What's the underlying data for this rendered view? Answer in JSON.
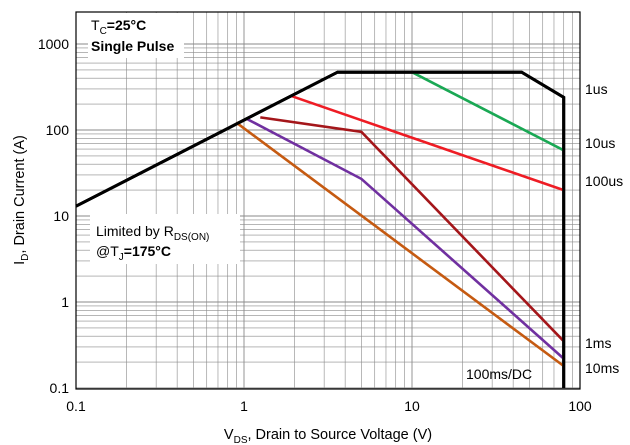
{
  "chart_data": {
    "type": "line",
    "title": "",
    "xlabel": {
      "main": "V",
      "sub": "DS",
      "rest": ", Drain to Source Voltage (V)"
    },
    "ylabel": {
      "main": "I",
      "sub": "D",
      "rest": ", Drain Current (A)"
    },
    "x_scale": "log",
    "y_scale": "log",
    "xlim": [
      0.1,
      100
    ],
    "ylim": [
      0.1,
      1500
    ],
    "x_ticks": [
      {
        "value": 0.1,
        "label": "0.1"
      },
      {
        "value": 1,
        "label": "1"
      },
      {
        "value": 10,
        "label": "10"
      },
      {
        "value": 100,
        "label": "100"
      }
    ],
    "y_ticks": [
      {
        "value": 0.1,
        "label": "0.1"
      },
      {
        "value": 1,
        "label": "1"
      },
      {
        "value": 10,
        "label": "10"
      },
      {
        "value": 100,
        "label": "100"
      },
      {
        "value": 1000,
        "label": "1000"
      }
    ],
    "grid": true,
    "conditions": {
      "tc_prefix": "T",
      "tc_sub": "C",
      "tc_value": "=25°C",
      "pulse": "Single Pulse",
      "rds_prefix": "Limited by R",
      "rds_sub": "DS(ON)",
      "tj_prefix": "@T",
      "tj_sub": "J",
      "tj_value": "=175°C"
    },
    "series": [
      {
        "name": "1us",
        "color": "#000000",
        "points": [
          [
            0.1,
            13
          ],
          [
            3.6,
            470
          ],
          [
            45,
            470
          ],
          [
            80,
            240
          ],
          [
            80,
            0.1
          ]
        ]
      },
      {
        "name": "10us",
        "color": "#1aa854",
        "points": [
          [
            10,
            470
          ],
          [
            80,
            58
          ]
        ]
      },
      {
        "name": "100us",
        "color": "#ee1c24",
        "points": [
          [
            1.9,
            250
          ],
          [
            80,
            20
          ]
        ]
      },
      {
        "name": "1ms",
        "color": "#a4161a",
        "points": [
          [
            1.25,
            140
          ],
          [
            5,
            95
          ],
          [
            80,
            0.35
          ]
        ]
      },
      {
        "name": "10ms",
        "color": "#7030a0",
        "points": [
          [
            1.05,
            133
          ],
          [
            5,
            27
          ],
          [
            80,
            0.22
          ]
        ]
      },
      {
        "name": "100ms/DC",
        "color": "#c55a11",
        "points": [
          [
            0.9,
            122
          ],
          [
            80,
            0.18
          ]
        ]
      }
    ]
  }
}
